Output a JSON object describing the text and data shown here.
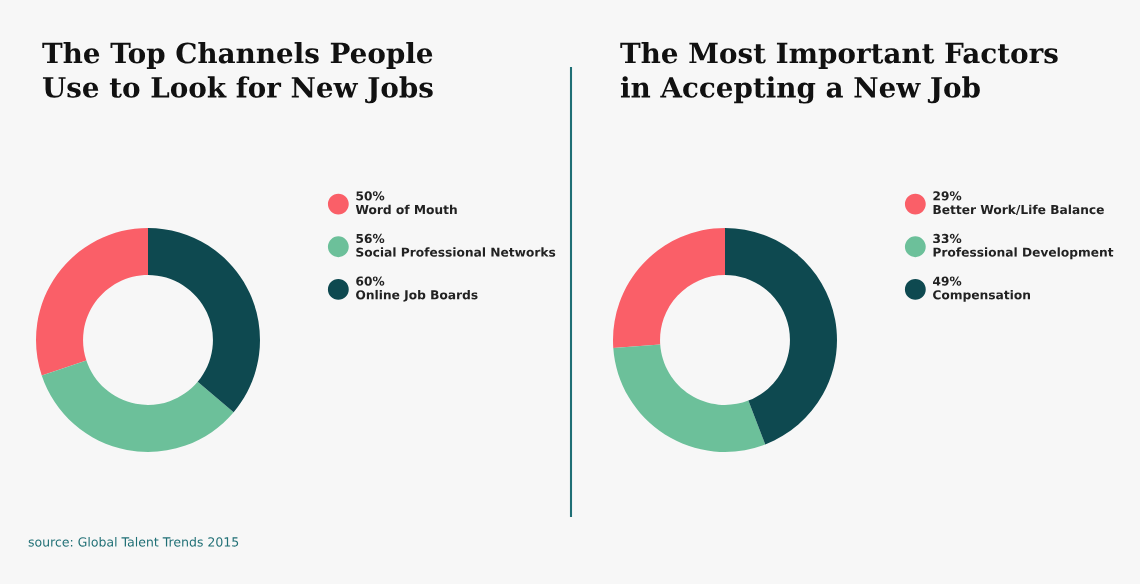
{
  "chart_data": [
    {
      "type": "donut",
      "title": "The Top Channels People\nUse to Look for New Jobs",
      "categories": [
        "Word of Mouth",
        "Social Professional Networks",
        "Online Job Boards"
      ],
      "values": [
        50,
        56,
        60
      ],
      "value_labels": [
        "50%",
        "56%",
        "60%"
      ],
      "colors": [
        "#fa5f68",
        "#6cc09a",
        "#0e4950"
      ],
      "legend": "right",
      "annotations": [
        "source: Global Talent Trends 2015"
      ]
    },
    {
      "type": "donut",
      "title": "The Most Important Factors\nin Accepting a New Job",
      "categories": [
        "Better Work/Life Balance",
        "Professional Development",
        "Compensation"
      ],
      "values": [
        29,
        33,
        49
      ],
      "value_labels": [
        "29%",
        "33%",
        "49%"
      ],
      "colors": [
        "#fa5f68",
        "#6cc09a",
        "#0e4950"
      ],
      "legend": "right"
    }
  ]
}
